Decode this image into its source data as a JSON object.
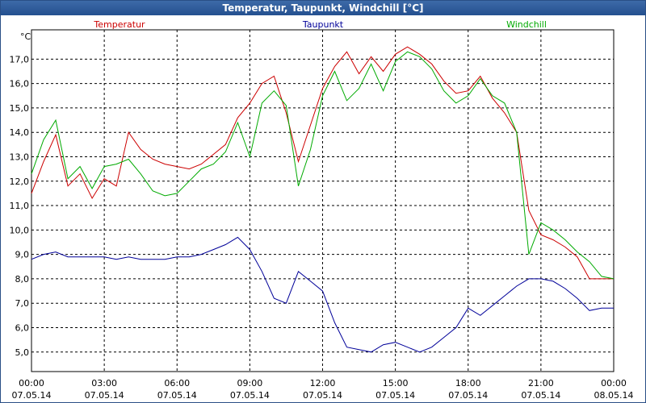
{
  "window": {
    "title": "Temperatur, Taupunkt, Windchill [°C]"
  },
  "chart_data": {
    "type": "line",
    "title": "Temperatur, Taupunkt, Windchill [°C]",
    "ylabel": "°C",
    "xlabel": "",
    "grid": true,
    "ylim": [
      4.2,
      18.2
    ],
    "xlim": [
      0,
      24
    ],
    "yticks": [
      "5,0",
      "6,0",
      "7,0",
      "8,0",
      "9,0",
      "10,0",
      "11,0",
      "12,0",
      "13,0",
      "14,0",
      "15,0",
      "16,0",
      "17,0"
    ],
    "xticks": [
      {
        "time": "00:00",
        "date": "07.05.14"
      },
      {
        "time": "03:00",
        "date": "07.05.14"
      },
      {
        "time": "06:00",
        "date": "07.05.14"
      },
      {
        "time": "09:00",
        "date": "07.05.14"
      },
      {
        "time": "12:00",
        "date": "07.05.14"
      },
      {
        "time": "15:00",
        "date": "07.05.14"
      },
      {
        "time": "18:00",
        "date": "07.05.14"
      },
      {
        "time": "21:00",
        "date": "07.05.14"
      },
      {
        "time": "00:00",
        "date": "08.05.14"
      }
    ],
    "x": [
      0,
      0.5,
      1,
      1.5,
      2,
      2.5,
      3,
      3.5,
      4,
      4.5,
      5,
      5.5,
      6,
      6.5,
      7,
      7.5,
      8,
      8.5,
      9,
      9.5,
      10,
      10.5,
      11,
      11.5,
      12,
      12.5,
      13,
      13.5,
      14,
      14.5,
      15,
      15.5,
      16,
      16.5,
      17,
      17.5,
      18,
      18.5,
      19,
      19.5,
      20,
      20.5,
      21,
      21.5,
      22,
      22.5,
      23,
      23.5,
      24
    ],
    "series": [
      {
        "name": "Temperatur",
        "color": "#cc0000",
        "values": [
          11.5,
          12.8,
          13.9,
          11.8,
          12.3,
          11.3,
          12.1,
          11.8,
          14.0,
          13.3,
          12.9,
          12.7,
          12.6,
          12.5,
          12.7,
          13.1,
          13.5,
          14.6,
          15.2,
          16.0,
          16.3,
          14.8,
          12.8,
          14.3,
          15.8,
          16.7,
          17.3,
          16.4,
          17.1,
          16.5,
          17.2,
          17.5,
          17.2,
          16.8,
          16.1,
          15.6,
          15.7,
          16.3,
          15.4,
          14.8,
          14.0,
          10.8,
          9.8,
          9.6,
          9.3,
          8.9,
          8.0,
          8.0,
          8.0
        ]
      },
      {
        "name": "Taupunkt",
        "color": "#000099",
        "values": [
          8.8,
          9.0,
          9.1,
          8.9,
          8.9,
          8.9,
          8.9,
          8.8,
          8.9,
          8.8,
          8.8,
          8.8,
          8.9,
          8.9,
          9.0,
          9.2,
          9.4,
          9.7,
          9.2,
          8.3,
          7.2,
          7.0,
          8.3,
          7.9,
          7.5,
          6.2,
          5.2,
          5.1,
          5.0,
          5.3,
          5.4,
          5.2,
          5.0,
          5.2,
          5.6,
          6.0,
          6.8,
          6.5,
          6.9,
          7.3,
          7.7,
          8.0,
          8.0,
          7.9,
          7.6,
          7.2,
          6.7,
          6.8,
          6.8
        ]
      },
      {
        "name": "Windchill",
        "color": "#00aa00",
        "values": [
          12.3,
          13.7,
          14.5,
          12.1,
          12.6,
          11.7,
          12.6,
          12.7,
          12.9,
          12.3,
          11.6,
          11.4,
          11.5,
          12.0,
          12.5,
          12.7,
          13.2,
          14.4,
          13.0,
          15.2,
          15.7,
          15.1,
          11.8,
          13.3,
          15.5,
          16.5,
          15.3,
          15.8,
          16.8,
          15.7,
          16.9,
          17.3,
          17.1,
          16.6,
          15.7,
          15.2,
          15.5,
          16.2,
          15.5,
          15.2,
          14.0,
          9.0,
          10.3,
          10.0,
          9.6,
          9.1,
          8.7,
          8.1,
          8.0
        ]
      }
    ]
  }
}
